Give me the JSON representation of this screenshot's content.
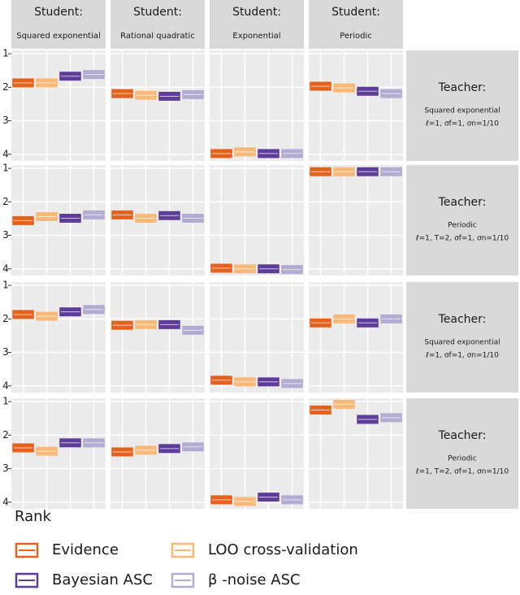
{
  "chart_data": {
    "type": "crossbar",
    "columns": [
      {
        "label": "Student:",
        "sub": "Squared exponential"
      },
      {
        "label": "Student:",
        "sub": "Rational quadratic"
      },
      {
        "label": "Student:",
        "sub": "Exponential"
      },
      {
        "label": "Student:",
        "sub": "Periodic"
      }
    ],
    "rows": [
      {
        "label": "Teacher:",
        "sub": "Squared exponential",
        "params": "ℓ=1, σf=1, σn=1/10"
      },
      {
        "label": "Teacher:",
        "sub": "Periodic",
        "params": "ℓ=1, T=2, σf=1, σn=1/10"
      },
      {
        "label": "Teacher:",
        "sub": "Squared exponential",
        "params": "ℓ=1, σf=1, σn=1/10"
      },
      {
        "label": "Teacher:",
        "sub": "Periodic",
        "params": "ℓ=1, T=2, σf=1, σn=1/10"
      }
    ],
    "legend_title": "Rank",
    "ylim": [
      0.9,
      4.2
    ],
    "y_reversed": true,
    "yticks": [
      1,
      2,
      3,
      4
    ],
    "grid": true,
    "series": [
      {
        "name": "Evidence",
        "color": "#e6611b",
        "values": [
          [
            1.87,
            2.19,
            3.98,
            1.97
          ],
          [
            2.56,
            2.39,
            3.98,
            1.1
          ],
          [
            1.87,
            2.19,
            3.83,
            2.12
          ],
          [
            2.38,
            2.5,
            3.93,
            1.25
          ]
        ]
      },
      {
        "name": "LOO cross-validation",
        "color": "#f8b878",
        "values": [
          [
            1.87,
            2.24,
            3.93,
            2.02
          ],
          [
            2.44,
            2.49,
            4.0,
            1.1
          ],
          [
            1.92,
            2.17,
            3.88,
            2.0
          ],
          [
            2.48,
            2.45,
            3.98,
            1.08
          ]
        ]
      },
      {
        "name": "Bayesian ASC",
        "color": "#5e3c99",
        "values": [
          [
            1.67,
            2.27,
            3.98,
            2.12
          ],
          [
            2.49,
            2.41,
            4.0,
            1.1
          ],
          [
            1.79,
            2.17,
            3.88,
            2.12
          ],
          [
            2.23,
            2.4,
            3.85,
            1.53
          ]
        ]
      },
      {
        "name": "β -noise ASC",
        "color": "#b2abd2",
        "values": [
          [
            1.62,
            2.22,
            3.98,
            2.19
          ],
          [
            2.39,
            2.49,
            4.02,
            1.1
          ],
          [
            1.72,
            2.34,
            3.93,
            2.0
          ],
          [
            2.23,
            2.35,
            3.93,
            1.48
          ]
        ]
      }
    ]
  }
}
